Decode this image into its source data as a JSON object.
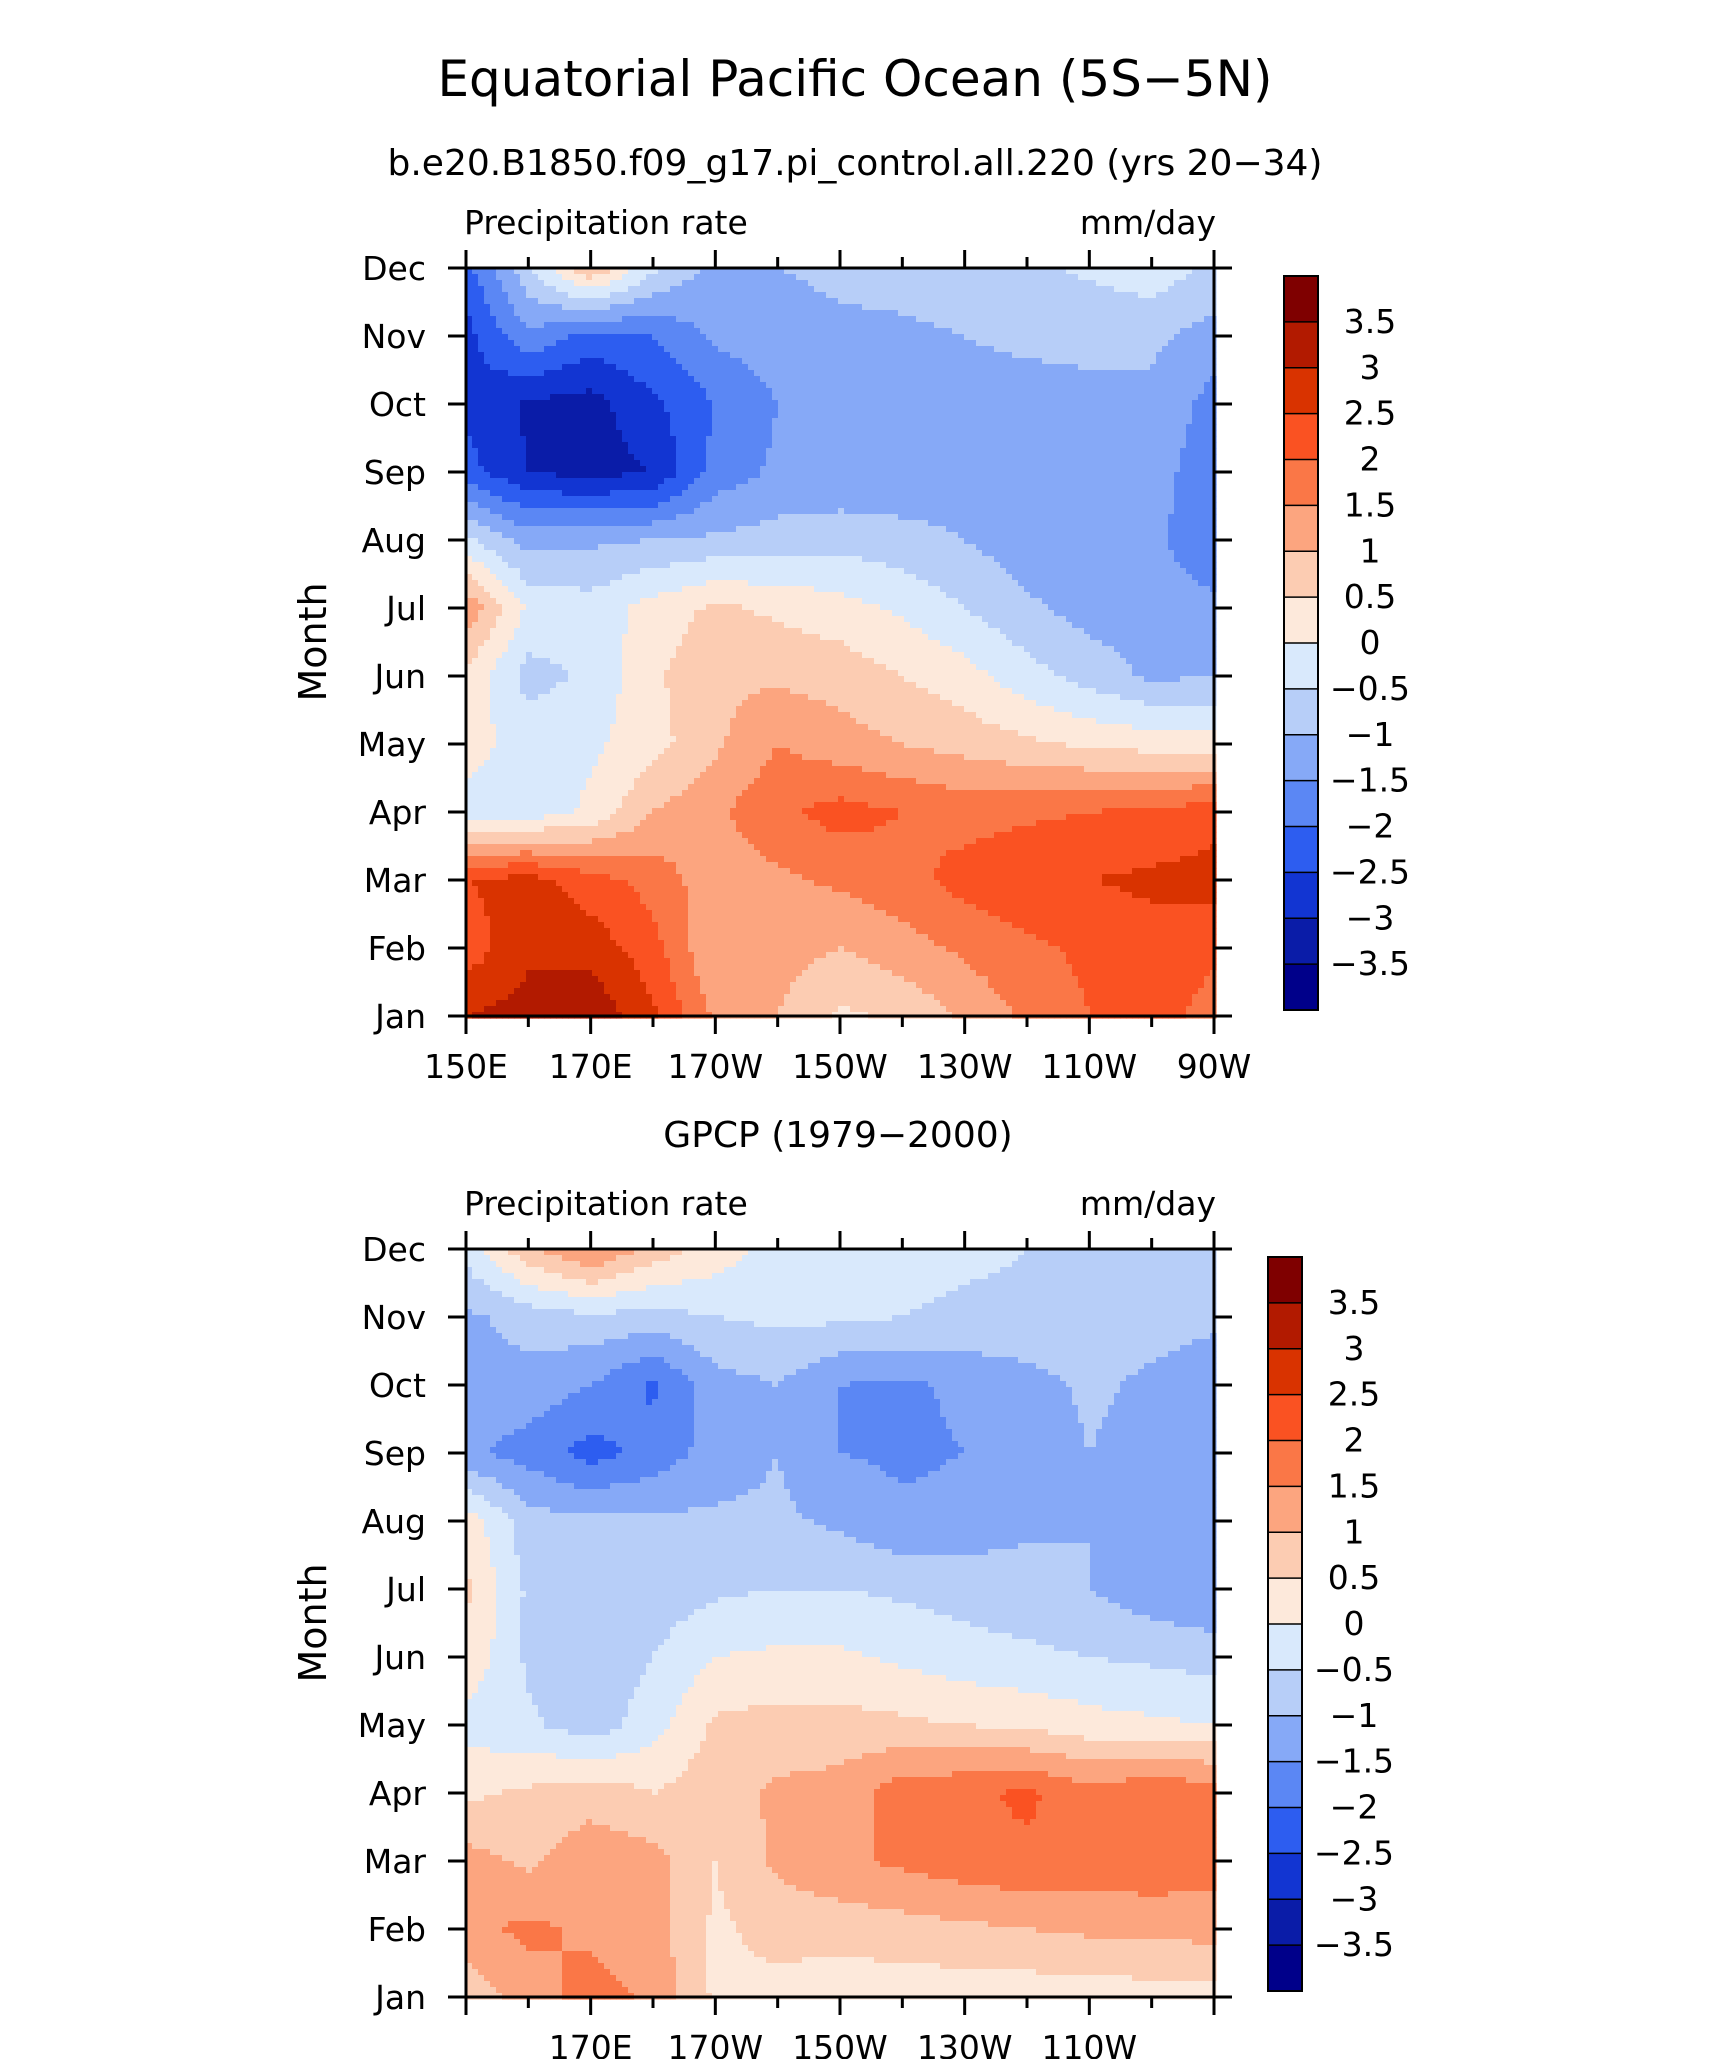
{
  "title": "Equatorial Pacific Ocean (5S−5N)",
  "subtitle": "b.e20.B1850.f09_g17.pi_control.all.220 (yrs 20−34)",
  "colorbar": {
    "labels": [
      "3.5",
      "3",
      "2.5",
      "2",
      "1.5",
      "1",
      "0.5",
      "0",
      "−0.5",
      "−1",
      "−1.5",
      "−2",
      "−2.5",
      "−3",
      "−3.5"
    ],
    "colors": [
      "#7f0000",
      "#b21a00",
      "#d93300",
      "#fa5222",
      "#fa7747",
      "#fca57f",
      "#fcccb2",
      "#fde9db",
      "#d9e9fc",
      "#b7cef8",
      "#86a9f7",
      "#5b87f4",
      "#2d5df0",
      "#1235d2",
      "#0a1ca8",
      "#00008a"
    ],
    "levels": [
      4.0,
      3.5,
      3.0,
      2.5,
      2.0,
      1.5,
      1.0,
      0.5,
      0.0,
      -0.5,
      -1.0,
      -1.5,
      -2.0,
      -2.5,
      -3.0,
      -3.5,
      -4.0
    ]
  },
  "chart_data": [
    {
      "type": "heatmap",
      "title": "",
      "left_label": "Precipitation rate",
      "right_label": "mm/day",
      "ylabel": "Month",
      "xlabel": "",
      "x_tick_labels": [
        "150E",
        "170E",
        "170W",
        "150W",
        "130W",
        "110W",
        "90W"
      ],
      "y_tick_labels": [
        "Jan",
        "Feb",
        "Mar",
        "Apr",
        "May",
        "Jun",
        "Jul",
        "Aug",
        "Sep",
        "Oct",
        "Nov",
        "Dec"
      ],
      "x": [
        150,
        160,
        170,
        180,
        190,
        200,
        210,
        220,
        230,
        240,
        250,
        260,
        270
      ],
      "xlim": [
        150,
        270
      ],
      "y": [
        "Jan",
        "Feb",
        "Mar",
        "Apr",
        "May",
        "Jun",
        "Jul",
        "Aug",
        "Sep",
        "Oct",
        "Nov",
        "Dec"
      ],
      "z": [
        [
          3.0,
          3.2,
          3.4,
          2.6,
          1.4,
          1.0,
          0.4,
          0.6,
          1.1,
          1.6,
          2.0,
          2.2,
          1.8
        ],
        [
          2.2,
          2.9,
          2.8,
          2.2,
          1.0,
          1.2,
          1.0,
          1.3,
          1.6,
          1.9,
          2.1,
          2.3,
          2.1
        ],
        [
          2.5,
          2.7,
          2.2,
          1.8,
          1.2,
          1.4,
          1.6,
          1.8,
          2.2,
          2.4,
          2.5,
          2.6,
          2.7
        ],
        [
          -0.2,
          -0.3,
          0.1,
          1.0,
          1.4,
          1.9,
          2.2,
          2.0,
          1.8,
          1.9,
          2.0,
          2.1,
          2.3
        ],
        [
          0.2,
          -0.2,
          -0.1,
          0.3,
          0.9,
          1.5,
          1.2,
          1.0,
          0.8,
          0.6,
          0.4,
          0.3,
          0.2
        ],
        [
          0.4,
          -0.7,
          -0.4,
          0.4,
          0.9,
          0.9,
          0.8,
          0.5,
          0.2,
          -0.3,
          -0.7,
          -1.1,
          -1.0
        ],
        [
          1.4,
          -0.1,
          -0.3,
          0.2,
          0.6,
          0.4,
          0.2,
          -0.1,
          -0.5,
          -0.9,
          -1.2,
          -1.3,
          -1.4
        ],
        [
          -0.4,
          -1.2,
          -1.1,
          -1.0,
          -0.9,
          -0.8,
          -0.7,
          -0.8,
          -1.0,
          -1.3,
          -1.4,
          -1.4,
          -1.8
        ],
        [
          -2.3,
          -3.0,
          -3.2,
          -3.0,
          -1.8,
          -1.4,
          -1.4,
          -1.4,
          -1.3,
          -1.3,
          -1.3,
          -1.3,
          -1.8
        ],
        [
          -2.6,
          -3.1,
          -3.2,
          -2.6,
          -2.0,
          -1.5,
          -1.3,
          -1.2,
          -1.2,
          -1.2,
          -1.1,
          -1.1,
          -1.7
        ],
        [
          -2.7,
          -1.6,
          -2.2,
          -2.0,
          -1.4,
          -1.2,
          -1.1,
          -1.1,
          -1.0,
          -0.9,
          -0.9,
          -0.9,
          -1.2
        ],
        [
          -2.2,
          -0.6,
          1.0,
          -0.4,
          -1.2,
          -1.0,
          -0.9,
          -0.8,
          -0.7,
          -0.6,
          -0.4,
          -0.2,
          -0.6
        ]
      ]
    },
    {
      "type": "heatmap",
      "title": "GPCP (1979−2000)",
      "left_label": "Precipitation rate",
      "right_label": "mm/day",
      "ylabel": "Month",
      "xlabel": "",
      "x_tick_labels": [
        "170E",
        "170W",
        "150W",
        "130W",
        "110W"
      ],
      "y_tick_labels": [
        "Jan",
        "Feb",
        "Mar",
        "Apr",
        "May",
        "Jun",
        "Jul",
        "Aug",
        "Sep",
        "Oct",
        "Nov",
        "Dec"
      ],
      "x": [
        150,
        160,
        170,
        180,
        190,
        200,
        210,
        220,
        230,
        240,
        250,
        260,
        270
      ],
      "xlim": [
        150,
        270
      ],
      "y": [
        "Jan",
        "Feb",
        "Mar",
        "Apr",
        "May",
        "Jun",
        "Jul",
        "Aug",
        "Sep",
        "Oct",
        "Nov",
        "Dec"
      ],
      "z": [
        [
          0.6,
          1.3,
          1.7,
          1.4,
          0.4,
          0.3,
          0.2,
          0.2,
          0.2,
          0.2,
          0.2,
          0.3,
          0.3
        ],
        [
          1.4,
          1.6,
          1.4,
          1.2,
          0.4,
          0.7,
          0.7,
          0.8,
          0.9,
          1.0,
          1.1,
          1.1,
          1.2
        ],
        [
          1.2,
          0.9,
          1.3,
          1.2,
          0.5,
          1.1,
          1.4,
          1.6,
          1.8,
          1.9,
          1.8,
          1.9,
          1.7
        ],
        [
          0.4,
          0.6,
          0.8,
          0.5,
          0.8,
          1.1,
          1.2,
          1.8,
          1.9,
          2.1,
          1.7,
          1.9,
          1.8
        ],
        [
          -0.2,
          -0.4,
          -0.8,
          -0.2,
          0.6,
          0.7,
          0.7,
          0.6,
          0.5,
          0.4,
          0.2,
          0.1,
          0.0
        ],
        [
          0.4,
          -0.6,
          -0.9,
          -0.5,
          0.0,
          0.1,
          0.1,
          -0.1,
          -0.3,
          -0.4,
          -0.5,
          -0.6,
          -0.7
        ],
        [
          0.6,
          -0.6,
          -0.9,
          -0.8,
          -0.6,
          -0.5,
          -0.5,
          -0.6,
          -0.7,
          -0.8,
          -1.0,
          -1.3,
          -1.5
        ],
        [
          0.3,
          -0.8,
          -0.9,
          -0.9,
          -0.9,
          -0.9,
          -1.1,
          -1.4,
          -1.3,
          -1.1,
          -1.0,
          -1.2,
          -1.2
        ],
        [
          -1.4,
          -1.7,
          -2.2,
          -1.8,
          -1.3,
          -1.0,
          -1.5,
          -1.6,
          -1.5,
          -1.3,
          -1.0,
          -1.2,
          -1.4
        ],
        [
          -1.2,
          -1.2,
          -1.5,
          -2.1,
          -1.2,
          -1.0,
          -1.5,
          -1.6,
          -1.4,
          -1.2,
          -0.9,
          -1.1,
          -1.3
        ],
        [
          -1.1,
          -0.8,
          -0.6,
          -0.7,
          -0.5,
          -0.4,
          -0.4,
          -0.5,
          -0.6,
          -0.6,
          -0.7,
          -0.8,
          -0.9
        ],
        [
          -0.3,
          0.9,
          1.6,
          0.8,
          0.3,
          -0.2,
          -0.4,
          -0.3,
          -0.4,
          -0.5,
          -0.5,
          -0.6,
          -0.6
        ]
      ]
    }
  ]
}
